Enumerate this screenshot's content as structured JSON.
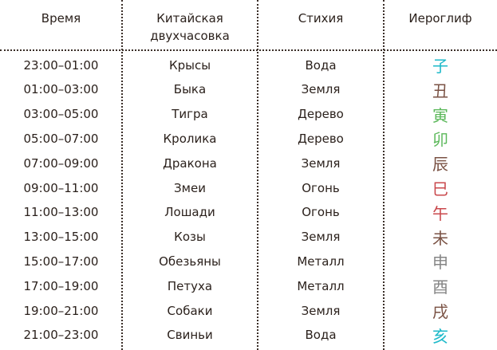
{
  "headers": [
    "Время",
    "Китайская\nдвухчасовка",
    "Стихия",
    "Иероглиф"
  ],
  "header_lines": {
    "col2_line1": "Китайская",
    "col2_line2": "двухчасовка"
  },
  "element_colors": {
    "Вода": "#1cb9c9",
    "Земля": "#7a5244",
    "Дерево": "#5bb85a",
    "Огонь": "#c9484c",
    "Металл": "#858585"
  },
  "rows": [
    {
      "time": "23:00–01:00",
      "hour": "Крысы",
      "element": "Вода",
      "glyph": "子",
      "color": "#1cb9c9"
    },
    {
      "time": "01:00–03:00",
      "hour": "Быка",
      "element": "Земля",
      "glyph": "丑",
      "color": "#7a5244"
    },
    {
      "time": "03:00–05:00",
      "hour": "Тигра",
      "element": "Дерево",
      "glyph": "寅",
      "color": "#5bb85a"
    },
    {
      "time": "05:00–07:00",
      "hour": "Кролика",
      "element": "Дерево",
      "glyph": "卯",
      "color": "#5bb85a"
    },
    {
      "time": "07:00–09:00",
      "hour": "Дракона",
      "element": "Земля",
      "glyph": "辰",
      "color": "#7a5244"
    },
    {
      "time": "09:00–11:00",
      "hour": "Змеи",
      "element": "Огонь",
      "glyph": "巳",
      "color": "#c9484c"
    },
    {
      "time": "11:00–13:00",
      "hour": "Лошади",
      "element": "Огонь",
      "glyph": "午",
      "color": "#c9484c"
    },
    {
      "time": "13:00–15:00",
      "hour": "Козы",
      "element": "Земля",
      "glyph": "未",
      "color": "#7a5244"
    },
    {
      "time": "15:00–17:00",
      "hour": "Обезьяны",
      "element": "Металл",
      "glyph": "申",
      "color": "#858585"
    },
    {
      "time": "17:00–19:00",
      "hour": "Петуха",
      "element": "Металл",
      "glyph": "酉",
      "color": "#858585"
    },
    {
      "time": "19:00–21:00",
      "hour": "Собаки",
      "element": "Земля",
      "glyph": "戌",
      "color": "#7a5244"
    },
    {
      "time": "21:00–23:00",
      "hour": "Свиньи",
      "element": "Вода",
      "glyph": "亥",
      "color": "#1cb9c9"
    }
  ]
}
